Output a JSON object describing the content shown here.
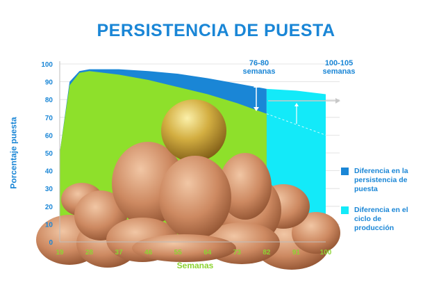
{
  "chart_data": {
    "type": "area",
    "title": "PERSISTENCIA DE PUESTA",
    "xlabel": "Semanas",
    "ylabel": "Porcentaje puesta",
    "x_ticks": [
      19,
      28,
      37,
      46,
      55,
      64,
      73,
      82,
      91,
      100
    ],
    "y_ticks": [
      0,
      10,
      20,
      30,
      40,
      50,
      60,
      70,
      80,
      90,
      100
    ],
    "xlim": [
      19,
      100
    ],
    "ylim": [
      0,
      100
    ],
    "grid": true,
    "legend_position": "right",
    "series": [
      {
        "name": "Diferencia en la persistencia de puesta",
        "color": "#1a86d6",
        "x": [
          19,
          22,
          25,
          28,
          37,
          46,
          55,
          64,
          73,
          82
        ],
        "y": [
          50,
          90,
          96,
          97,
          97,
          96,
          94.5,
          92,
          89,
          86
        ]
      },
      {
        "name": "Diferencia en el ciclo de producción",
        "color": "#13eaf9",
        "x": [
          82,
          91,
          100
        ],
        "y": [
          86,
          85,
          83
        ]
      }
    ],
    "lower_curve": {
      "color": "#8ee02b",
      "x": [
        19,
        22,
        25,
        28,
        37,
        46,
        55,
        64,
        73,
        82,
        91,
        100
      ],
      "y": [
        50,
        88,
        95,
        96,
        94,
        91,
        87,
        83,
        78,
        72,
        66,
        60
      ]
    },
    "annotations": [
      {
        "line1": "76-80",
        "line2": "semanas",
        "x": 82
      },
      {
        "line1": "100-105",
        "line2": "semanas",
        "x": 100
      }
    ]
  }
}
